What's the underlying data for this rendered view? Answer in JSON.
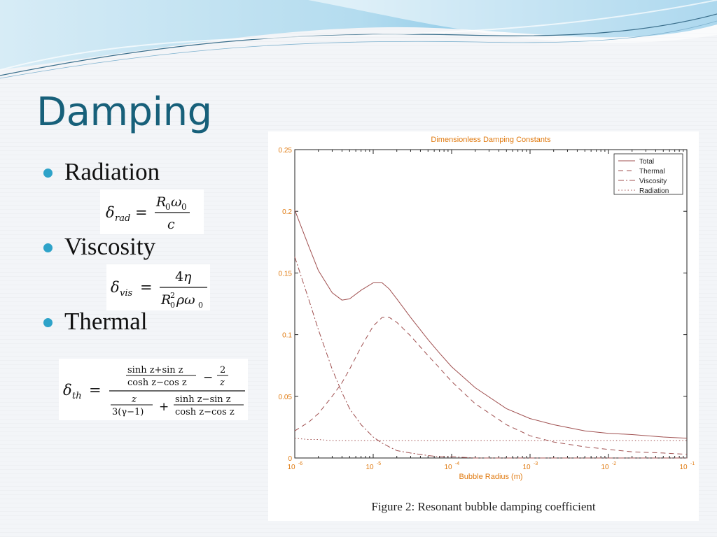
{
  "slide": {
    "title": "Damping"
  },
  "bullets": [
    {
      "label": "Radiation"
    },
    {
      "label": "Viscosity"
    },
    {
      "label": "Thermal"
    }
  ],
  "figure_caption": "Figure 2: Resonant bubble damping coefficient",
  "colors": {
    "title": "#17607a",
    "bullet": "#2ea3c9",
    "curve": "#a05050",
    "axis_text": "#e07a10"
  },
  "chart_data": {
    "type": "line",
    "title": "Dimensionless Damping Constants",
    "xlabel": "Bubble Radius (m)",
    "ylabel": "",
    "x_scale": "log",
    "xlim": [
      1e-06,
      0.1
    ],
    "ylim": [
      0,
      0.25
    ],
    "x_ticks": [
      1e-06,
      1e-05,
      0.0001,
      0.001,
      0.01,
      0.1
    ],
    "x_tick_exponents": [
      "-6",
      "-5",
      "-4",
      "-3",
      "-2",
      "-1"
    ],
    "y_ticks": [
      0,
      0.05,
      0.1,
      0.15,
      0.2,
      0.25
    ],
    "y_tick_labels": [
      "0",
      "0.05",
      "0.1",
      "0.15",
      "0.2",
      "0.25"
    ],
    "grid": false,
    "legend_position": "top-right",
    "x": [
      1e-06,
      1.5e-06,
      2e-06,
      3e-06,
      4e-06,
      5e-06,
      7e-06,
      1e-05,
      1.3e-05,
      1.6e-05,
      2e-05,
      3e-05,
      5e-05,
      7e-05,
      0.0001,
      0.0002,
      0.0005,
      0.001,
      0.002,
      0.005,
      0.01,
      0.02,
      0.05,
      0.1
    ],
    "series": [
      {
        "name": "Total",
        "style": "solid",
        "values": [
          0.201,
          0.172,
          0.152,
          0.134,
          0.128,
          0.129,
          0.136,
          0.142,
          0.142,
          0.137,
          0.129,
          0.114,
          0.096,
          0.085,
          0.074,
          0.057,
          0.04,
          0.032,
          0.027,
          0.022,
          0.02,
          0.019,
          0.017,
          0.016
        ]
      },
      {
        "name": "Thermal",
        "style": "dashed",
        "values": [
          0.022,
          0.029,
          0.036,
          0.05,
          0.061,
          0.072,
          0.09,
          0.107,
          0.114,
          0.114,
          0.11,
          0.099,
          0.083,
          0.073,
          0.062,
          0.044,
          0.027,
          0.018,
          0.013,
          0.009,
          0.007,
          0.005,
          0.004,
          0.003
        ]
      },
      {
        "name": "Viscosity",
        "style": "dashdot",
        "values": [
          0.163,
          0.129,
          0.104,
          0.072,
          0.053,
          0.04,
          0.027,
          0.017,
          0.012,
          0.009,
          0.006,
          0.004,
          0.002,
          0.001,
          0.001,
          0.0,
          0.0,
          0.0,
          0.0,
          0.0,
          0.0,
          0.0,
          0.0,
          0.0
        ]
      },
      {
        "name": "Radiation",
        "style": "dotted",
        "values": [
          0.016,
          0.015,
          0.015,
          0.014,
          0.014,
          0.014,
          0.014,
          0.014,
          0.014,
          0.014,
          0.014,
          0.014,
          0.014,
          0.014,
          0.014,
          0.014,
          0.014,
          0.014,
          0.014,
          0.014,
          0.014,
          0.014,
          0.014,
          0.014
        ]
      }
    ]
  }
}
